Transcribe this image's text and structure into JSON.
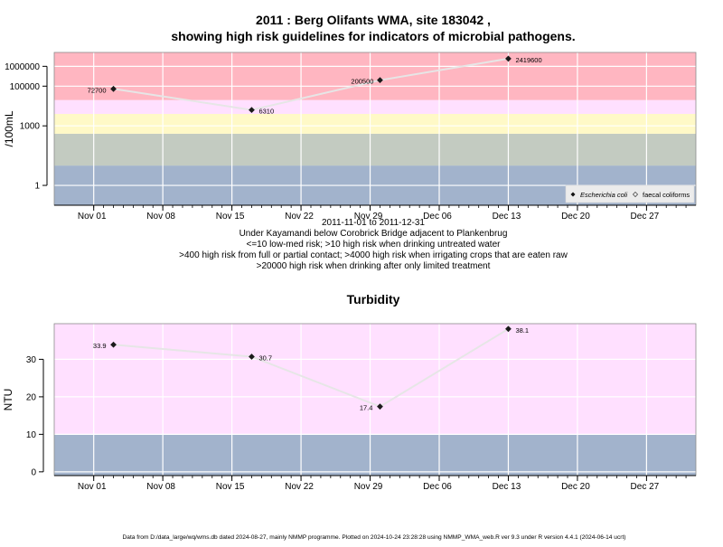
{
  "title_line1": "2011 : Berg Olifants WMA, site 183042 ,",
  "title_line2": "showing high risk guidelines for indicators of microbial pathogens.",
  "colors": {
    "red": "#ffb6c1",
    "pink": "#ffe0ff",
    "yellow": "#fff9c7",
    "sage": "#c3cbc1",
    "blue": "#a2b3cc",
    "line": "#e6e6e6",
    "marker": "#1a1a1a"
  },
  "subtitle_lines": [
    "2011-11-01 to 2011-12-31",
    "Under Kayamandi below Corobrick Bridge adjacent to Plankenbrug",
    "<=10 low-med risk; >10 high risk when drinking untreated water",
    ">400 high risk from full or partial contact; >4000 high risk when irrigating crops that are eaten raw",
    ">20000 high risk when drinking after only limited treatment"
  ],
  "footer": "Data from D:/data_large/wq/wms.db dated 2024-08-27, mainly NMMP programme. Plotted on 2024-10-24 23:28:28 using NMMP_WMA_web.R ver 9.3 under R version 4.4.1 (2024-06-14 ucrt)",
  "chart_data": [
    {
      "type": "line",
      "ylabel": "/100mL",
      "y_scale": "log",
      "x_range": [
        "2011-10-28",
        "2012-01-01"
      ],
      "y_range": [
        0.1,
        5000000
      ],
      "y_ticks": [
        {
          "value": 1,
          "label": "1"
        },
        {
          "value": 1000,
          "label": "1000"
        },
        {
          "value": 100000,
          "label": "100000"
        },
        {
          "value": 1000000,
          "label": "1000000"
        }
      ],
      "x_ticks": [
        {
          "date": "2011-11-01",
          "label": "Nov 01"
        },
        {
          "date": "2011-11-08",
          "label": "Nov 08"
        },
        {
          "date": "2011-11-15",
          "label": "Nov 15"
        },
        {
          "date": "2011-11-22",
          "label": "Nov 22"
        },
        {
          "date": "2011-11-29",
          "label": "Nov 29"
        },
        {
          "date": "2011-12-06",
          "label": "Dec 06"
        },
        {
          "date": "2011-12-13",
          "label": "Dec 13"
        },
        {
          "date": "2011-12-20",
          "label": "Dec 20"
        },
        {
          "date": "2011-12-27",
          "label": "Dec 27"
        }
      ],
      "bands": [
        {
          "from": 0.1,
          "to": 10,
          "color": "#a2b3cc"
        },
        {
          "from": 10,
          "to": 400,
          "color": "#c3cbc1"
        },
        {
          "from": 400,
          "to": 4000,
          "color": "#fff9c7"
        },
        {
          "from": 4000,
          "to": 20000,
          "color": "#ffe0ff"
        },
        {
          "from": 20000,
          "to": 5000000,
          "color": "#ffb6c1"
        }
      ],
      "series": [
        {
          "name": "Escherichia coli",
          "points": [
            {
              "date": "2011-11-03",
              "value": 72700,
              "label": "72700"
            },
            {
              "date": "2011-11-17",
              "value": 6310,
              "label": "6310"
            },
            {
              "date": "2011-11-30",
              "value": 200500,
              "label": "200500"
            },
            {
              "date": "2011-12-13",
              "value": 2419600,
              "label": "2419600"
            }
          ]
        }
      ],
      "legend": {
        "position": "bottom-right",
        "entries": [
          "Escherichia coli",
          "faecal coliforms"
        ]
      }
    },
    {
      "type": "line",
      "title": "Turbidity",
      "ylabel": "NTU",
      "y_scale": "linear",
      "x_range": [
        "2011-10-28",
        "2012-01-01"
      ],
      "y_range": [
        -1,
        39.5
      ],
      "y_ticks": [
        {
          "value": 0,
          "label": "0"
        },
        {
          "value": 10,
          "label": "10"
        },
        {
          "value": 20,
          "label": "20"
        },
        {
          "value": 30,
          "label": "30"
        }
      ],
      "x_ticks": [
        {
          "date": "2011-11-01",
          "label": "Nov 01"
        },
        {
          "date": "2011-11-08",
          "label": "Nov 08"
        },
        {
          "date": "2011-11-15",
          "label": "Nov 15"
        },
        {
          "date": "2011-11-22",
          "label": "Nov 22"
        },
        {
          "date": "2011-11-29",
          "label": "Nov 29"
        },
        {
          "date": "2011-12-06",
          "label": "Dec 06"
        },
        {
          "date": "2011-12-13",
          "label": "Dec 13"
        },
        {
          "date": "2011-12-20",
          "label": "Dec 20"
        },
        {
          "date": "2011-12-27",
          "label": "Dec 27"
        }
      ],
      "bands": [
        {
          "from": -1,
          "to": 10,
          "color": "#a2b3cc"
        },
        {
          "from": 10,
          "to": 39.5,
          "color": "#ffe0ff"
        }
      ],
      "series": [
        {
          "name": "Turbidity",
          "points": [
            {
              "date": "2011-11-03",
              "value": 33.9,
              "label": "33.9"
            },
            {
              "date": "2011-11-17",
              "value": 30.7,
              "label": "30.7"
            },
            {
              "date": "2011-11-30",
              "value": 17.4,
              "label": "17.4"
            },
            {
              "date": "2011-12-13",
              "value": 38.1,
              "label": "38.1"
            }
          ]
        }
      ]
    }
  ]
}
